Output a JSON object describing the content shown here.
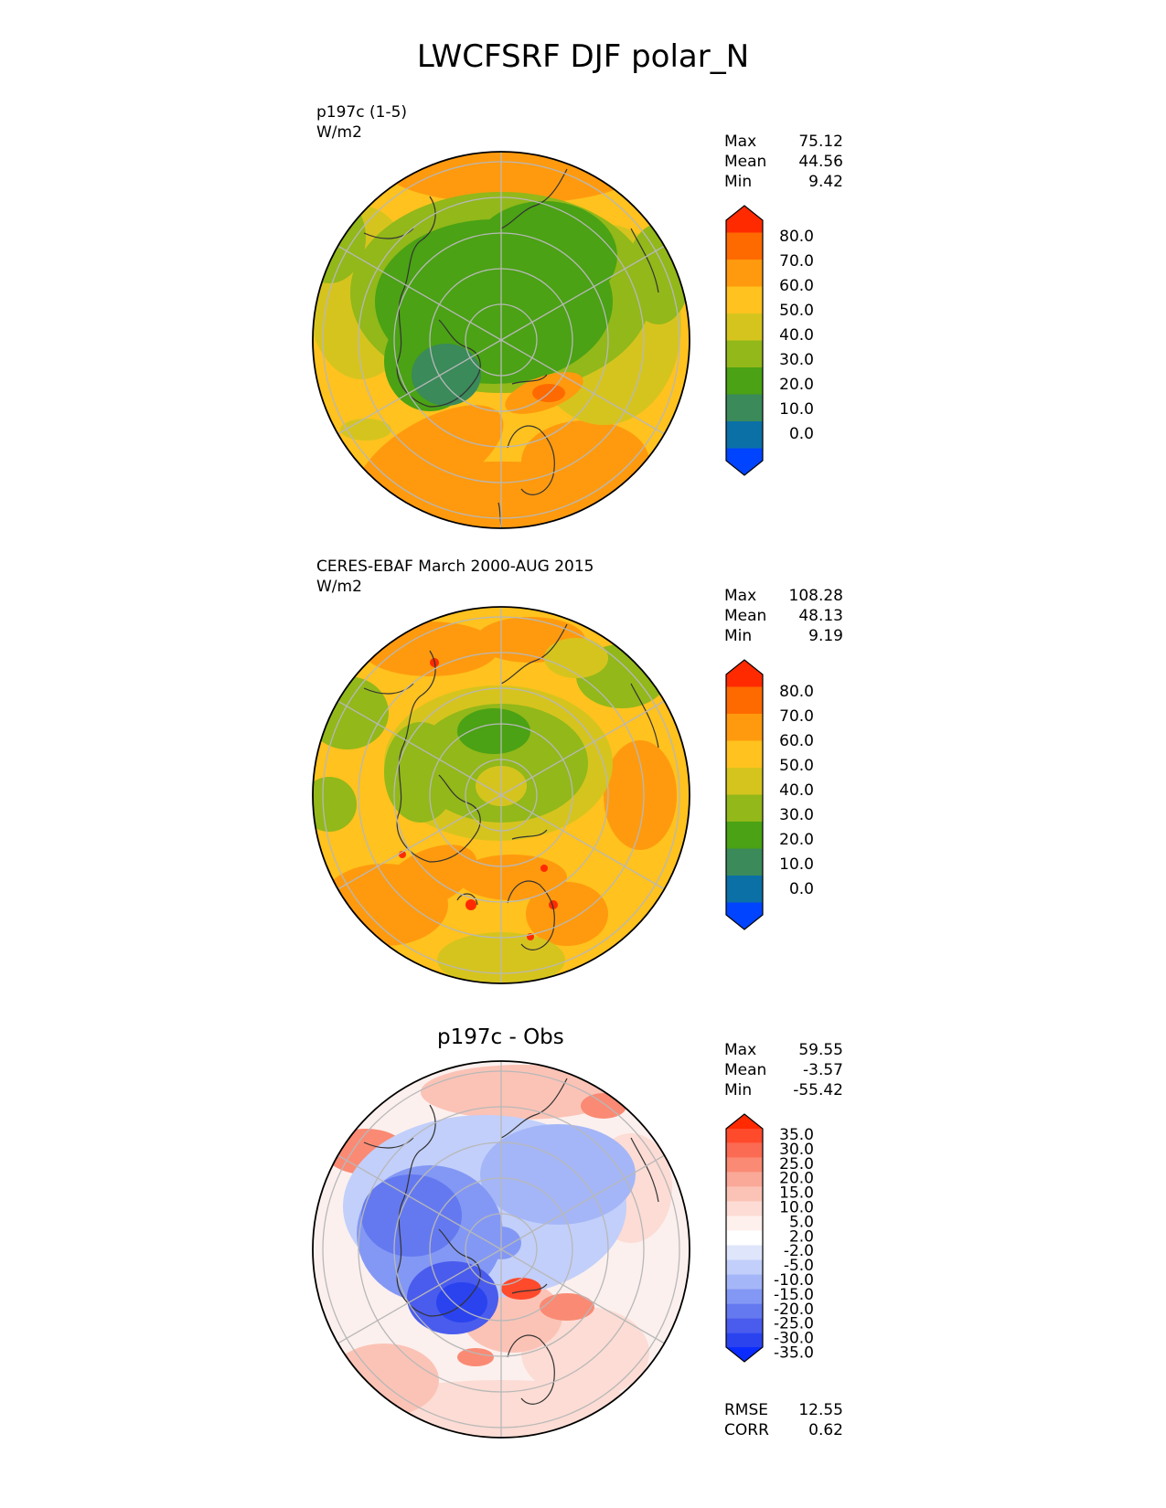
{
  "title": "LWCFSRF DJF polar_N",
  "panels": [
    {
      "id": "test",
      "line1": "p197c (1-5)",
      "line2": "W/m2",
      "stats": [
        {
          "label": "Max",
          "value": "75.12"
        },
        {
          "label": "Mean",
          "value": "44.56"
        },
        {
          "label": "Min",
          "value": "9.42"
        }
      ],
      "colorbar": {
        "labels": [
          "80.0",
          "70.0",
          "60.0",
          "50.0",
          "40.0",
          "30.0",
          "20.0",
          "10.0",
          "0.0"
        ],
        "colors": [
          "#ff2a00",
          "#ff6a00",
          "#ff9a0e",
          "#ffc21e",
          "#d6c41e",
          "#92b81a",
          "#4aa214",
          "#3a8a5a",
          "#0a70a6",
          "#0044ff"
        ]
      }
    },
    {
      "id": "ref",
      "line1": "CERES-EBAF March 2000-AUG 2015",
      "line2": "W/m2",
      "stats": [
        {
          "label": "Max",
          "value": "108.28"
        },
        {
          "label": "Mean",
          "value": "48.13"
        },
        {
          "label": "Min",
          "value": "9.19"
        }
      ],
      "colorbar": {
        "labels": [
          "80.0",
          "70.0",
          "60.0",
          "50.0",
          "40.0",
          "30.0",
          "20.0",
          "10.0",
          "0.0"
        ],
        "colors": [
          "#ff2a00",
          "#ff6a00",
          "#ff9a0e",
          "#ffc21e",
          "#d6c41e",
          "#92b81a",
          "#4aa214",
          "#3a8a5a",
          "#0a70a6",
          "#0044ff"
        ]
      }
    },
    {
      "id": "diff",
      "title": "p197c - Obs",
      "stats": [
        {
          "label": "Max",
          "value": "59.55"
        },
        {
          "label": "Mean",
          "value": "-3.57"
        },
        {
          "label": "Min",
          "value": "-55.42"
        }
      ],
      "colorbar": {
        "labels": [
          "35.0",
          "30.0",
          "25.0",
          "20.0",
          "15.0",
          "10.0",
          "5.0",
          "2.0",
          "-2.0",
          "-5.0",
          "-10.0",
          "-15.0",
          "-20.0",
          "-25.0",
          "-30.0",
          "-35.0"
        ],
        "colors": [
          "#ff2a00",
          "#ff4a2c",
          "#fb6a52",
          "#fa8a74",
          "#faa898",
          "#fbc3b6",
          "#fcdcd4",
          "#fef0ec",
          "#ffffff",
          "#dfe6fb",
          "#c2cffa",
          "#a4b6f7",
          "#8398f4",
          "#6479f0",
          "#4a5ced",
          "#2a43ef",
          "#0a2cff"
        ]
      },
      "metrics": [
        {
          "label": "RMSE",
          "value": "12.55"
        },
        {
          "label": "CORR",
          "value": "0.62"
        }
      ]
    }
  ]
}
